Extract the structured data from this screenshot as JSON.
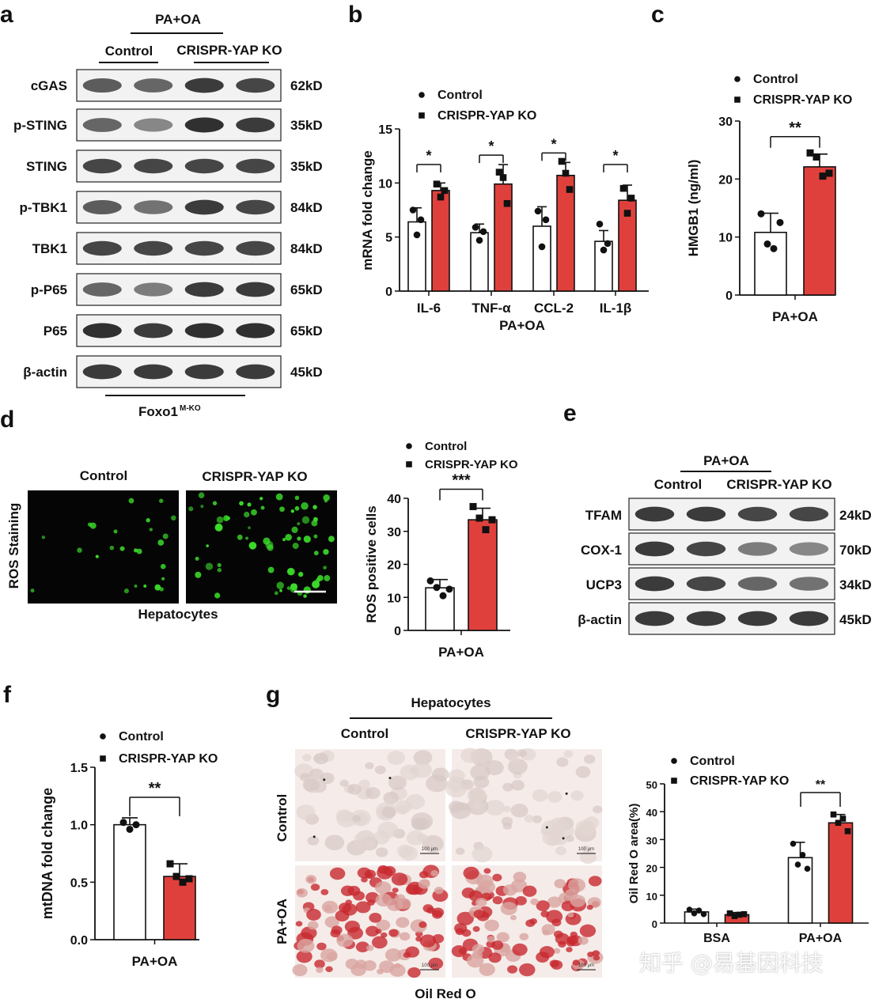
{
  "colors": {
    "control": "#ffffff",
    "ko": "#e0403c",
    "stroke": "#111111",
    "fluor": "#3bdc2a",
    "oil": "#c8292f"
  },
  "watermark": "知乎 @易基因科技",
  "panel_a": {
    "letter": "a",
    "header": "PA+OA",
    "groups": [
      "Control",
      "CRISPR-YAP KO"
    ],
    "footer": "Foxo1",
    "footer_sup": "M-KO",
    "blots": [
      {
        "label": "cGAS",
        "size": "62kD",
        "intensity": [
          0.75,
          0.7,
          0.9,
          0.85
        ]
      },
      {
        "label": "p-STING",
        "size": "35kD",
        "intensity": [
          0.7,
          0.55,
          0.95,
          0.9
        ]
      },
      {
        "label": "STING",
        "size": "35kD",
        "intensity": [
          0.85,
          0.85,
          0.85,
          0.85
        ]
      },
      {
        "label": "p-TBK1",
        "size": "84kD",
        "intensity": [
          0.75,
          0.65,
          0.9,
          0.85
        ]
      },
      {
        "label": "TBK1",
        "size": "84kD",
        "intensity": [
          0.85,
          0.85,
          0.85,
          0.85
        ]
      },
      {
        "label": "p-P65",
        "size": "65kD",
        "intensity": [
          0.7,
          0.6,
          0.9,
          0.9
        ]
      },
      {
        "label": "P65",
        "size": "65kD",
        "intensity": [
          0.95,
          0.9,
          0.95,
          0.95
        ]
      },
      {
        "label": "β-actin",
        "size": "45kD",
        "intensity": [
          0.9,
          0.9,
          0.9,
          0.9
        ]
      }
    ]
  },
  "panel_d_images": {
    "letter": "d",
    "row_label": "ROS Staining",
    "col_labels": [
      "Control",
      "CRISPR-YAP KO"
    ],
    "caption": "Hepatocytes"
  },
  "panel_e": {
    "letter": "e",
    "header": "PA+OA",
    "groups": [
      "Control",
      "CRISPR-YAP KO"
    ],
    "blots": [
      {
        "label": "TFAM",
        "size": "24kD",
        "intensity": [
          0.9,
          0.9,
          0.85,
          0.85
        ]
      },
      {
        "label": "COX-1",
        "size": "70kD",
        "intensity": [
          0.9,
          0.85,
          0.6,
          0.55
        ]
      },
      {
        "label": "UCP3",
        "size": "34kD",
        "intensity": [
          0.9,
          0.85,
          0.7,
          0.65
        ]
      },
      {
        "label": "β-actin",
        "size": "45kD",
        "intensity": [
          0.9,
          0.9,
          0.9,
          0.9
        ]
      }
    ]
  },
  "panel_g_images": {
    "letter": "g",
    "header": "Hepatocytes",
    "col_labels": [
      "Control",
      "CRISPR-YAP KO"
    ],
    "row_labels": [
      "Control",
      "PA+OA"
    ],
    "caption": "Oil Red O",
    "scale_text": "100 μm"
  },
  "chart_data": [
    {
      "panel": "b",
      "type": "bar",
      "ylabel": "mRNA fold change",
      "xlabel": "PA+OA",
      "ylim": [
        0,
        15
      ],
      "yticks": [
        0,
        5,
        10,
        15
      ],
      "categories": [
        "IL-6",
        "TNF-α",
        "CCL-2",
        "IL-1β"
      ],
      "series": [
        {
          "name": "Control",
          "marker": "circle",
          "values": [
            6.4,
            5.4,
            6.0,
            4.6
          ],
          "err": [
            1.3,
            0.8,
            1.8,
            1.0
          ],
          "points": [
            [
              7.5,
              5.2,
              6.6
            ],
            [
              5.9,
              4.7,
              5.5
            ],
            [
              7.4,
              4.1,
              6.6
            ],
            [
              6.2,
              3.8,
              4.4
            ]
          ]
        },
        {
          "name": "CRISPR-YAP KO",
          "marker": "square",
          "values": [
            9.3,
            9.9,
            10.7,
            8.4
          ],
          "err": [
            0.7,
            1.8,
            1.2,
            1.4
          ],
          "points": [
            [
              9.9,
              8.7,
              9.3
            ],
            [
              11.0,
              10.5,
              8.1
            ],
            [
              12.0,
              10.9,
              9.4
            ],
            [
              9.5,
              7.2,
              8.6
            ]
          ]
        }
      ],
      "annotations": [
        "*",
        "*",
        "*",
        "*"
      ]
    },
    {
      "panel": "c",
      "type": "bar",
      "ylabel": "HMGB1 (ng/ml)",
      "xlabel": "PA+OA",
      "ylim": [
        0,
        30
      ],
      "yticks": [
        0,
        10,
        20,
        30
      ],
      "series": [
        {
          "name": "Control",
          "marker": "circle",
          "value": 10.8,
          "err": 3.3,
          "points": [
            14.0,
            8.8,
            8.0,
            12.5
          ]
        },
        {
          "name": "CRISPR-YAP KO",
          "marker": "square",
          "value": 22.1,
          "err": 2.2,
          "points": [
            24.5,
            23.8,
            20.5,
            21.0
          ]
        }
      ],
      "annotation": "**"
    },
    {
      "panel": "d",
      "type": "bar",
      "ylabel": "ROS positive cells",
      "xlabel": "PA+OA",
      "ylim": [
        0,
        40
      ],
      "yticks": [
        0,
        10,
        20,
        30,
        40
      ],
      "series": [
        {
          "name": "Control",
          "marker": "circle",
          "value": 12.9,
          "err": 2.5,
          "points": [
            15.0,
            13.0,
            10.5,
            12.5
          ]
        },
        {
          "name": "CRISPR-YAP KO",
          "marker": "square",
          "value": 33.5,
          "err": 3.5,
          "points": [
            37.5,
            34.0,
            30.5,
            33.5
          ]
        }
      ],
      "annotation": "***"
    },
    {
      "panel": "f",
      "type": "bar",
      "ylabel": "mtDNA fold change",
      "xlabel": "PA+OA",
      "ylim": [
        0,
        1.5
      ],
      "yticks": [
        "0.0",
        "0.5",
        "1.0",
        "1.5"
      ],
      "series": [
        {
          "name": "Control",
          "marker": "circle",
          "value": 1.0,
          "err": 0.06,
          "points": [
            1.02,
            0.96,
            1.0
          ]
        },
        {
          "name": "CRISPR-YAP KO",
          "marker": "square",
          "value": 0.55,
          "err": 0.11,
          "points": [
            0.66,
            0.55,
            0.5,
            0.53
          ]
        }
      ],
      "annotation": "**"
    },
    {
      "panel": "g",
      "type": "bar",
      "ylabel": "Oil Red O area(%)",
      "ylim": [
        0,
        50
      ],
      "yticks": [
        0,
        10,
        20,
        30,
        40,
        50
      ],
      "categories": [
        "BSA",
        "PA+OA"
      ],
      "series": [
        {
          "name": "Control",
          "marker": "circle",
          "values": [
            4.0,
            23.5
          ],
          "err": [
            1.0,
            5.5
          ],
          "points": [
            [
              4.8,
              3.5,
              4.5,
              3.2
            ],
            [
              28.5,
              21.0,
              24.5,
              19.5
            ]
          ]
        },
        {
          "name": "CRISPR-YAP KO",
          "marker": "square",
          "values": [
            3.0,
            36.0
          ],
          "err": [
            0.8,
            3.0
          ],
          "points": [
            [
              3.5,
              2.5,
              3.0,
              3.2
            ],
            [
              39.0,
              36.0,
              37.5,
              33.0
            ]
          ]
        }
      ],
      "annotation": "**"
    }
  ]
}
